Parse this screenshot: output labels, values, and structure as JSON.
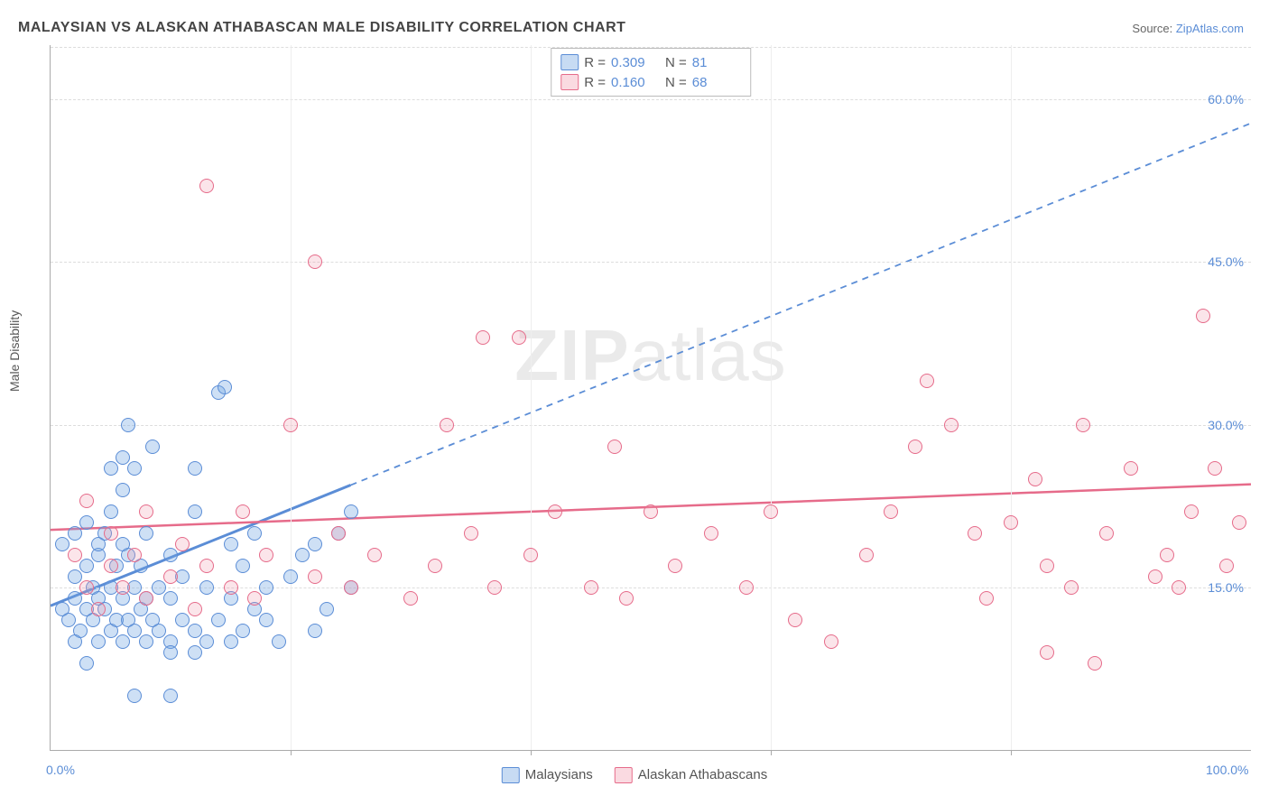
{
  "title": "MALAYSIAN VS ALASKAN ATHABASCAN MALE DISABILITY CORRELATION CHART",
  "source": {
    "label": "Source:",
    "site": "ZipAtlas.com"
  },
  "watermark": {
    "bold": "ZIP",
    "rest": "atlas"
  },
  "legend": {
    "r_label": "R =",
    "n_label": "N ="
  },
  "chart": {
    "type": "scatter",
    "ylabel": "Male Disability",
    "xlim": [
      0,
      100
    ],
    "ylim": [
      0,
      65
    ],
    "xticks": [
      0,
      20,
      40,
      60,
      80,
      100
    ],
    "xtick_labels": [
      "0.0%",
      "",
      "",
      "",
      "",
      "100.0%"
    ],
    "yticks": [
      15,
      30,
      45,
      60
    ],
    "ytick_labels": [
      "15.0%",
      "30.0%",
      "45.0%",
      "60.0%"
    ],
    "grid_color": "#dddddd",
    "background_color": "#ffffff",
    "marker_radius": 8,
    "series": [
      {
        "name": "Malaysians",
        "color": "#5b8dd6",
        "fill": "rgba(115,165,225,0.35)",
        "R": "0.309",
        "N": "81",
        "trend": {
          "y0": 13.3,
          "slope": 0.445,
          "solid_until_x": 25
        },
        "points": [
          [
            1,
            13
          ],
          [
            1.5,
            12
          ],
          [
            2,
            14
          ],
          [
            2,
            16
          ],
          [
            2.5,
            11
          ],
          [
            3,
            13
          ],
          [
            3,
            17
          ],
          [
            3.5,
            12
          ],
          [
            3.5,
            15
          ],
          [
            4,
            10
          ],
          [
            4,
            14
          ],
          [
            4,
            18
          ],
          [
            4.5,
            13
          ],
          [
            4.5,
            20
          ],
          [
            5,
            11
          ],
          [
            5,
            15
          ],
          [
            5,
            22
          ],
          [
            5.5,
            12
          ],
          [
            5.5,
            17
          ],
          [
            6,
            10
          ],
          [
            6,
            14
          ],
          [
            6,
            24
          ],
          [
            6,
            27
          ],
          [
            6.5,
            12
          ],
          [
            6.5,
            18
          ],
          [
            6.5,
            30
          ],
          [
            7,
            11
          ],
          [
            7,
            15
          ],
          [
            7,
            26
          ],
          [
            7.5,
            13
          ],
          [
            7.5,
            17
          ],
          [
            8,
            10
          ],
          [
            8,
            14
          ],
          [
            8,
            20
          ],
          [
            8.5,
            12
          ],
          [
            8.5,
            28
          ],
          [
            9,
            11
          ],
          [
            9,
            15
          ],
          [
            10,
            10
          ],
          [
            10,
            14
          ],
          [
            10,
            18
          ],
          [
            10,
            9
          ],
          [
            11,
            12
          ],
          [
            11,
            16
          ],
          [
            12,
            11
          ],
          [
            12,
            22
          ],
          [
            12,
            26
          ],
          [
            13,
            10
          ],
          [
            13,
            15
          ],
          [
            14,
            12
          ],
          [
            14,
            33
          ],
          [
            14.5,
            33.5
          ],
          [
            15,
            14
          ],
          [
            15,
            19
          ],
          [
            16,
            11
          ],
          [
            16,
            17
          ],
          [
            17,
            13
          ],
          [
            17,
            20
          ],
          [
            18,
            12
          ],
          [
            18,
            15
          ],
          [
            19,
            10
          ],
          [
            20,
            16
          ],
          [
            21,
            18
          ],
          [
            22,
            11
          ],
          [
            22,
            19
          ],
          [
            23,
            13
          ],
          [
            24,
            20
          ],
          [
            25,
            15
          ],
          [
            25,
            22
          ],
          [
            1,
            19
          ],
          [
            2,
            20
          ],
          [
            3,
            21
          ],
          [
            4,
            19
          ],
          [
            5,
            26
          ],
          [
            6,
            19
          ],
          [
            2,
            10
          ],
          [
            3,
            8
          ],
          [
            7,
            5
          ],
          [
            10,
            5
          ],
          [
            12,
            9
          ],
          [
            15,
            10
          ]
        ]
      },
      {
        "name": "Alaskan Athabascans",
        "color": "#e66b8a",
        "fill": "rgba(240,150,170,0.25)",
        "R": "0.160",
        "N": "68",
        "trend": {
          "y0": 20.3,
          "slope": 0.042,
          "solid_until_x": 100
        },
        "points": [
          [
            2,
            18
          ],
          [
            3,
            15
          ],
          [
            3,
            23
          ],
          [
            4,
            13
          ],
          [
            5,
            17
          ],
          [
            5,
            20
          ],
          [
            6,
            15
          ],
          [
            7,
            18
          ],
          [
            8,
            14
          ],
          [
            8,
            22
          ],
          [
            10,
            16
          ],
          [
            11,
            19
          ],
          [
            12,
            13
          ],
          [
            13,
            17
          ],
          [
            13,
            52
          ],
          [
            15,
            15
          ],
          [
            16,
            22
          ],
          [
            17,
            14
          ],
          [
            18,
            18
          ],
          [
            20,
            30
          ],
          [
            22,
            16
          ],
          [
            24,
            20
          ],
          [
            25,
            15
          ],
          [
            27,
            18
          ],
          [
            22,
            45
          ],
          [
            30,
            14
          ],
          [
            32,
            17
          ],
          [
            33,
            30
          ],
          [
            35,
            20
          ],
          [
            36,
            38
          ],
          [
            37,
            15
          ],
          [
            39,
            38
          ],
          [
            40,
            18
          ],
          [
            42,
            22
          ],
          [
            45,
            15
          ],
          [
            47,
            28
          ],
          [
            48,
            14
          ],
          [
            50,
            22
          ],
          [
            52,
            17
          ],
          [
            55,
            20
          ],
          [
            58,
            15
          ],
          [
            60,
            22
          ],
          [
            62,
            12
          ],
          [
            65,
            10
          ],
          [
            68,
            18
          ],
          [
            70,
            22
          ],
          [
            72,
            28
          ],
          [
            73,
            34
          ],
          [
            75,
            30
          ],
          [
            77,
            20
          ],
          [
            78,
            14
          ],
          [
            80,
            21
          ],
          [
            82,
            25
          ],
          [
            83,
            17
          ],
          [
            85,
            15
          ],
          [
            86,
            30
          ],
          [
            87,
            8
          ],
          [
            88,
            20
          ],
          [
            90,
            26
          ],
          [
            92,
            16
          ],
          [
            93,
            18
          ],
          [
            94,
            15
          ],
          [
            95,
            22
          ],
          [
            96,
            40
          ],
          [
            97,
            26
          ],
          [
            98,
            17
          ],
          [
            99,
            21
          ],
          [
            83,
            9
          ]
        ]
      }
    ]
  }
}
